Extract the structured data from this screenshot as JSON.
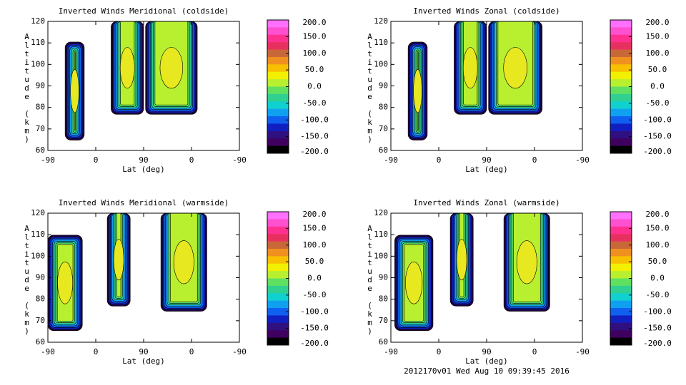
{
  "chart_data": [
    {
      "type": "contour",
      "title": "Inverted Winds Meridional (coldside)",
      "xlabel": "Lat (deg)",
      "ylabel": "Altitude (km)",
      "xticks": [
        "-90",
        "0",
        "90",
        "0",
        "-90"
      ],
      "ylim": [
        60,
        120
      ],
      "yticks": [
        60,
        70,
        80,
        90,
        100,
        110,
        120
      ]
    },
    {
      "type": "contour",
      "title": "Inverted Winds Zonal (coldside)",
      "xlabel": "Lat (deg)",
      "ylabel": "Altitude (km)",
      "xticks": [
        "-90",
        "0",
        "90",
        "0",
        "-90"
      ],
      "ylim": [
        60,
        120
      ],
      "yticks": [
        60,
        70,
        80,
        90,
        100,
        110,
        120
      ]
    },
    {
      "type": "contour",
      "title": "Inverted Winds Meridional (warmside)",
      "xlabel": "Lat (deg)",
      "ylabel": "Altitude (km)",
      "xticks": [
        "-90",
        "0",
        "90",
        "0",
        "-90"
      ],
      "ylim": [
        60,
        120
      ],
      "yticks": [
        60,
        70,
        80,
        90,
        100,
        110,
        120
      ]
    },
    {
      "type": "contour",
      "title": "Inverted Winds Zonal (warmside)",
      "xlabel": "Lat (deg)",
      "ylabel": "Altitude (km)",
      "xticks": [
        "-90",
        "0",
        "90",
        "0",
        "-90"
      ],
      "ylim": [
        60,
        120
      ],
      "yticks": [
        60,
        70,
        80,
        90,
        100,
        110,
        120
      ]
    }
  ],
  "colorbar": {
    "lim": [
      -200,
      200
    ],
    "ticks": [
      {
        "value": 200,
        "label": "200.0"
      },
      {
        "value": 150,
        "label": "150.0"
      },
      {
        "value": 100,
        "label": "100.0"
      },
      {
        "value": 50,
        "label": "50.0"
      },
      {
        "value": 0,
        "label": "0.0"
      },
      {
        "value": -50,
        "label": "-50.0"
      },
      {
        "value": -100,
        "label": "-100.0"
      },
      {
        "value": -150,
        "label": "-150.0"
      },
      {
        "value": -200,
        "label": "-200.0"
      }
    ],
    "colors": [
      "#ff70ff",
      "#ff50d0",
      "#ff3090",
      "#e83060",
      "#c86838",
      "#f09020",
      "#f8c000",
      "#f0f000",
      "#b8f030",
      "#60e060",
      "#30d090",
      "#10d0d0",
      "#10a0f0",
      "#1060f0",
      "#1020c0",
      "#301080",
      "#400060",
      "#000000"
    ]
  },
  "footer": "2012170v01 Wed Aug 10 09:39:45 2016"
}
